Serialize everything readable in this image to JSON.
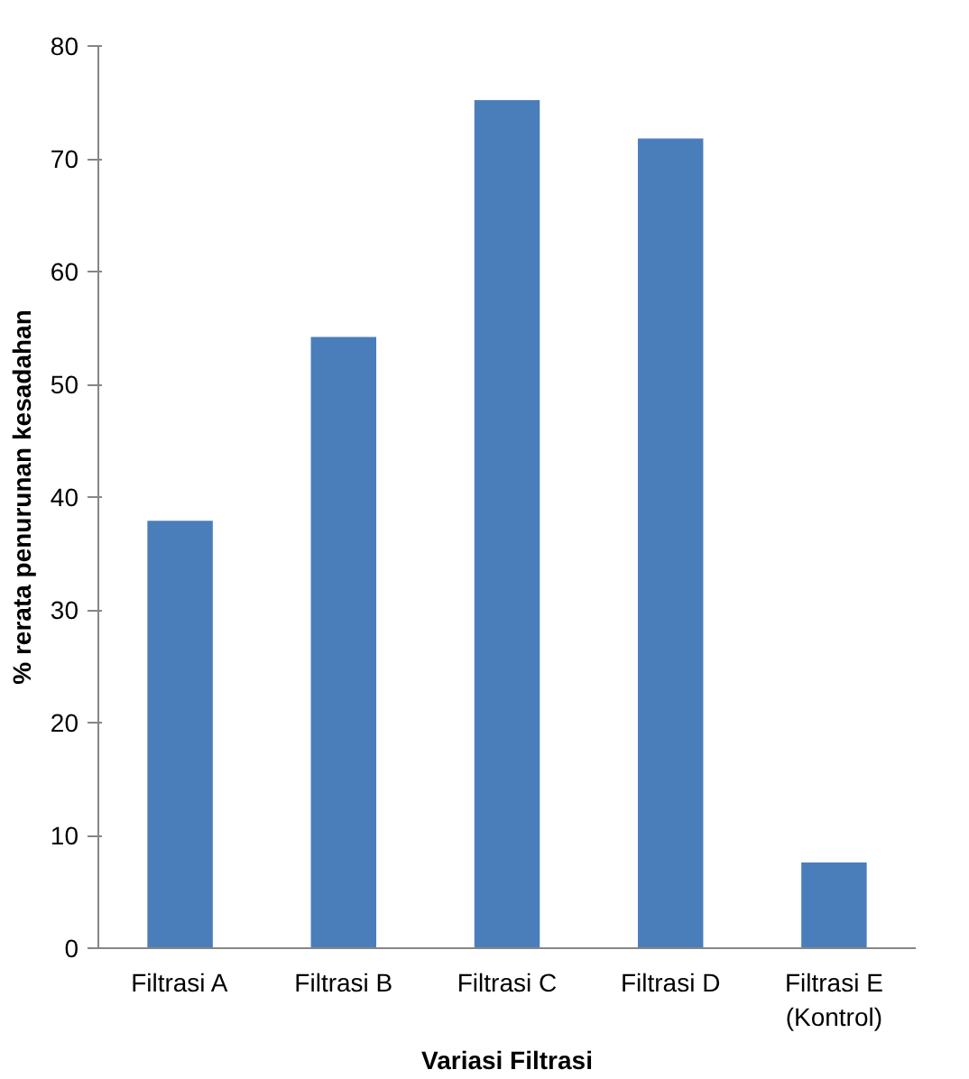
{
  "chart_data": {
    "type": "bar",
    "xlabel": "Variasi Filtrasi",
    "ylabel": "% rerata penurunan kesadahan",
    "categories": [
      "Filtrasi A",
      "Filtrasi B",
      "Filtrasi C",
      "Filtrasi D",
      "Filtrasi E\n(Kontrol)"
    ],
    "values": [
      37.9,
      54.2,
      75.2,
      71.8,
      7.6
    ],
    "color": "#4a7ebb",
    "ylim": [
      0,
      80
    ],
    "yticks": [
      0,
      10,
      20,
      30,
      40,
      50,
      60,
      70,
      80
    ],
    "grid": false
  }
}
